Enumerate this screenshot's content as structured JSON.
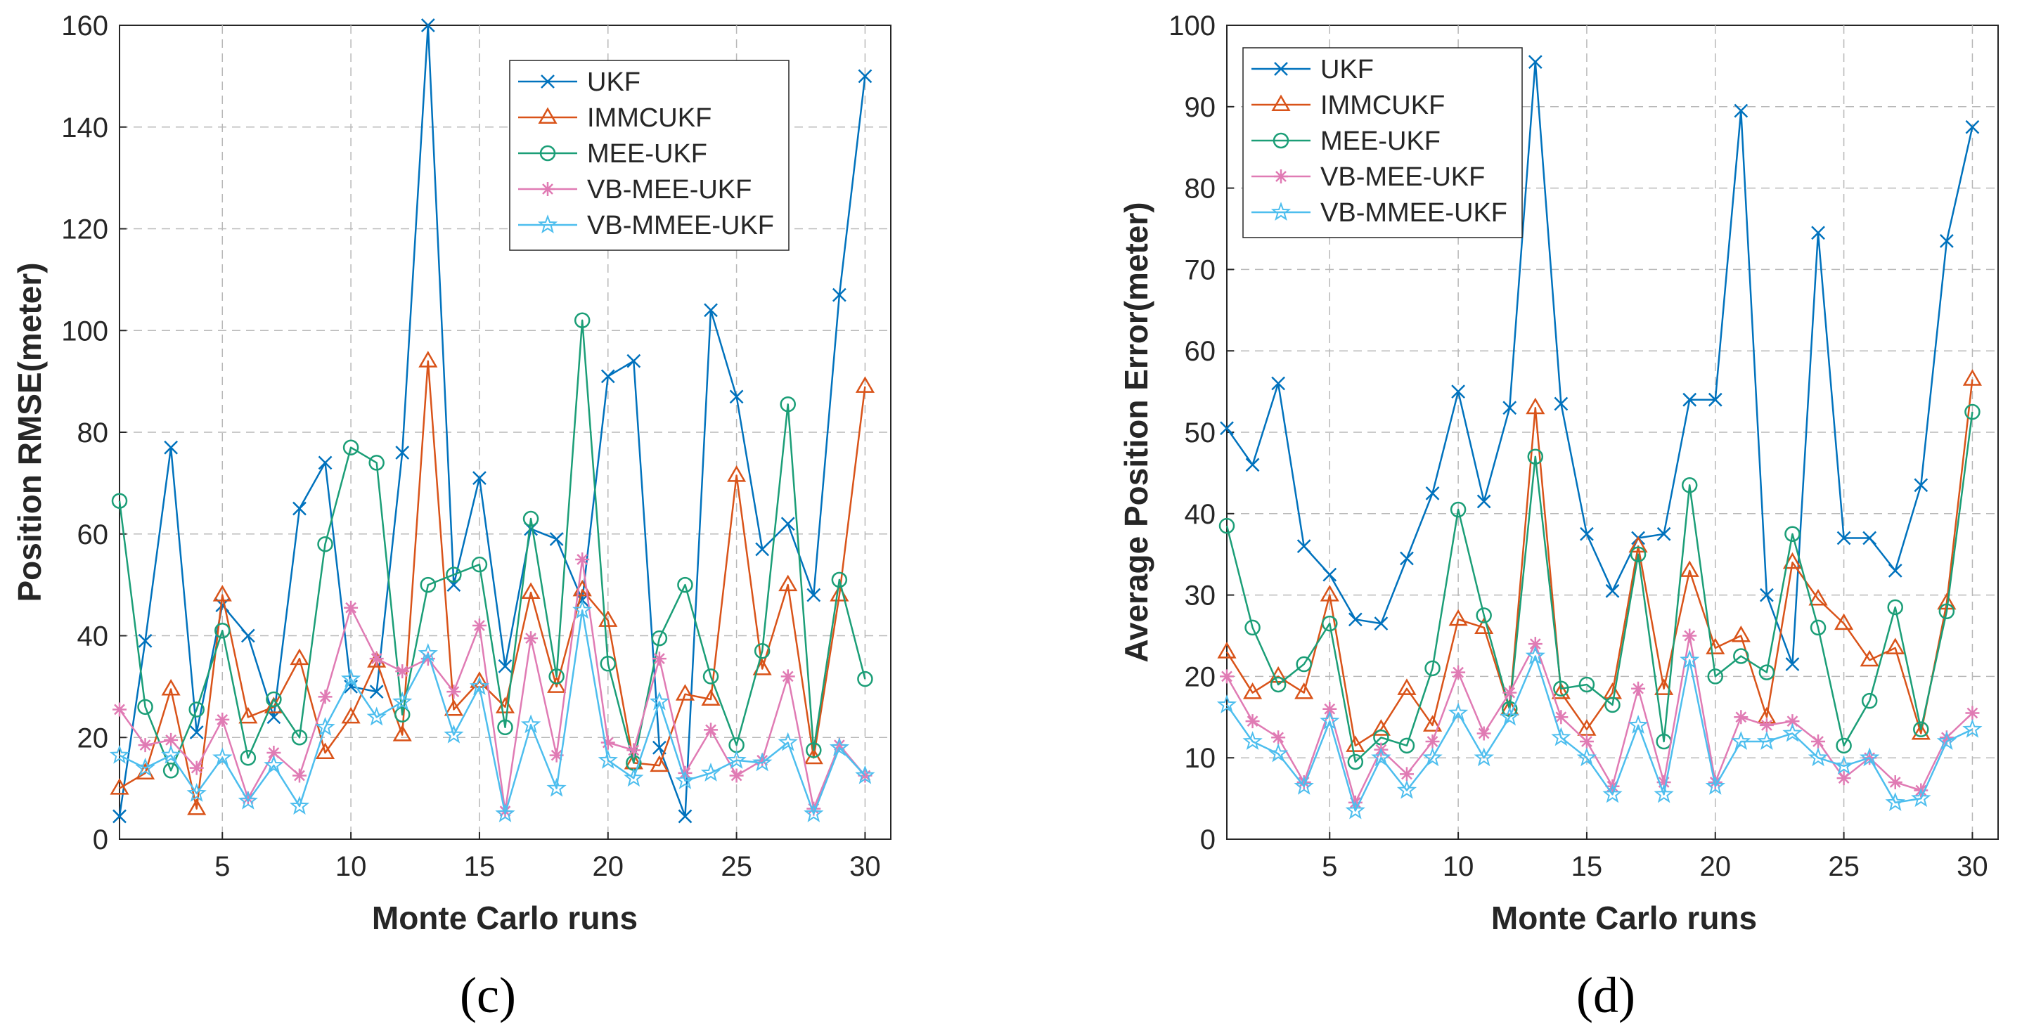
{
  "chart_data": [
    {
      "type": "line",
      "panel_label": "(c)",
      "xlabel": "Monte Carlo runs",
      "ylabel": "Position RMSE(meter)",
      "xlim": [
        1,
        31
      ],
      "ylim": [
        0,
        160
      ],
      "xticks": [
        5,
        10,
        15,
        20,
        25,
        30
      ],
      "yticks": [
        0,
        20,
        40,
        60,
        80,
        100,
        120,
        140,
        160
      ],
      "grid": true,
      "legend_position": "top-right",
      "x": [
        1,
        2,
        3,
        4,
        5,
        6,
        7,
        8,
        9,
        10,
        11,
        12,
        13,
        14,
        15,
        16,
        17,
        18,
        19,
        20,
        21,
        22,
        23,
        24,
        25,
        26,
        27,
        28,
        29,
        30
      ],
      "series": [
        {
          "name": "UKF",
          "marker": "x",
          "color": "#0072BD",
          "values": [
            4.5,
            39,
            77,
            21,
            46,
            40,
            24,
            65,
            74,
            30,
            29,
            76,
            160,
            50,
            71,
            34,
            61,
            59,
            47,
            91,
            94,
            18,
            4.5,
            104,
            87,
            57,
            62,
            48,
            107,
            150
          ]
        },
        {
          "name": "IMMCUKF",
          "marker": "triangle",
          "color": "#D95319",
          "values": [
            10,
            13,
            29.5,
            6,
            48,
            24,
            26,
            35.5,
            17,
            24,
            35,
            20.5,
            94,
            25.5,
            31,
            26,
            48.5,
            30,
            49,
            43,
            15,
            14.5,
            28.5,
            27.5,
            71.5,
            33.5,
            50,
            16,
            48,
            89
          ]
        },
        {
          "name": "MEE-UKF",
          "marker": "circle",
          "color": "#1B9E77",
          "values": [
            66.5,
            26,
            13.5,
            25.5,
            41,
            16,
            27.5,
            20,
            58,
            77,
            74,
            24.5,
            50,
            52,
            54,
            22,
            63,
            32,
            102,
            34.5,
            15,
            39.5,
            50,
            32,
            18.5,
            37,
            85.5,
            17.5,
            51,
            31.5
          ]
        },
        {
          "name": "VB-MEE-UKF",
          "marker": "asterisk",
          "color": "#E07BB4",
          "values": [
            25.5,
            18.5,
            19.5,
            14,
            23.5,
            8,
            17,
            12.5,
            28,
            45.5,
            35.5,
            33,
            35.5,
            29,
            42,
            5.5,
            39.5,
            16.5,
            55,
            19,
            17.5,
            35.5,
            13,
            21.5,
            12.5,
            15.5,
            32,
            6,
            18.5,
            12.5
          ]
        },
        {
          "name": "VB-MMEE-UKF",
          "marker": "star",
          "color": "#4DBEEE",
          "values": [
            16.5,
            14,
            16.5,
            9,
            16,
            7.5,
            14.5,
            6.5,
            22,
            31.5,
            24,
            27,
            36.5,
            20.5,
            30,
            5,
            22.5,
            10,
            45,
            15.5,
            12,
            27,
            11.5,
            13,
            15.5,
            15,
            19,
            5,
            18,
            12.5
          ]
        }
      ]
    },
    {
      "type": "line",
      "panel_label": "(d)",
      "xlabel": "Monte Carlo runs",
      "ylabel": "Average Position Error(meter)",
      "xlim": [
        1,
        31
      ],
      "ylim": [
        0,
        100
      ],
      "xticks": [
        5,
        10,
        15,
        20,
        25,
        30
      ],
      "yticks": [
        0,
        10,
        20,
        30,
        40,
        50,
        60,
        70,
        80,
        90,
        100
      ],
      "grid": true,
      "legend_position": "top-left",
      "x": [
        1,
        2,
        3,
        4,
        5,
        6,
        7,
        8,
        9,
        10,
        11,
        12,
        13,
        14,
        15,
        16,
        17,
        18,
        19,
        20,
        21,
        22,
        23,
        24,
        25,
        26,
        27,
        28,
        29,
        30
      ],
      "series": [
        {
          "name": "UKF",
          "marker": "x",
          "color": "#0072BD",
          "values": [
            50.5,
            46,
            56,
            36,
            32.5,
            27,
            26.5,
            34.5,
            42.5,
            55,
            41.5,
            53,
            95.5,
            53.5,
            37.5,
            30.5,
            37,
            37.5,
            54,
            54,
            89.5,
            30,
            21.5,
            74.5,
            37,
            37,
            33,
            43.5,
            73.5,
            87.5
          ]
        },
        {
          "name": "IMMCUKF",
          "marker": "triangle",
          "color": "#D95319",
          "values": [
            23,
            18,
            20,
            18,
            30,
            11.5,
            13.5,
            18.5,
            14,
            27,
            26,
            16,
            53,
            18,
            13.5,
            18,
            36,
            18.5,
            33,
            23.5,
            25,
            15,
            34,
            29.5,
            26.5,
            22,
            23.5,
            13,
            29,
            56.5
          ]
        },
        {
          "name": "MEE-UKF",
          "marker": "circle",
          "color": "#1B9E77",
          "values": [
            38.5,
            26,
            19,
            21.5,
            26.5,
            9.5,
            12.5,
            11.5,
            21,
            40.5,
            27.5,
            16,
            47,
            18.5,
            19,
            16.5,
            35,
            12,
            43.5,
            20,
            22.5,
            20.5,
            37.5,
            26,
            11.5,
            17,
            28.5,
            13.5,
            28,
            52.5
          ]
        },
        {
          "name": "VB-MEE-UKF",
          "marker": "asterisk",
          "color": "#E07BB4",
          "values": [
            20,
            14.5,
            12.5,
            7,
            16,
            4.5,
            11,
            8,
            12,
            20.5,
            13,
            18,
            24,
            15,
            12,
            6.5,
            18.5,
            7,
            25,
            7,
            15,
            14,
            14.5,
            12,
            7.5,
            10,
            7,
            6,
            12.5,
            15.5
          ]
        },
        {
          "name": "VB-MMEE-UKF",
          "marker": "star",
          "color": "#4DBEEE",
          "values": [
            16.5,
            12,
            10.5,
            6.5,
            14.5,
            3.5,
            10,
            6,
            10,
            15.5,
            10,
            15,
            22.5,
            12.5,
            10,
            5.5,
            14,
            5.5,
            22,
            6.5,
            12,
            12,
            13,
            10,
            9,
            10,
            4.5,
            5,
            12,
            13.5
          ]
        }
      ]
    }
  ]
}
